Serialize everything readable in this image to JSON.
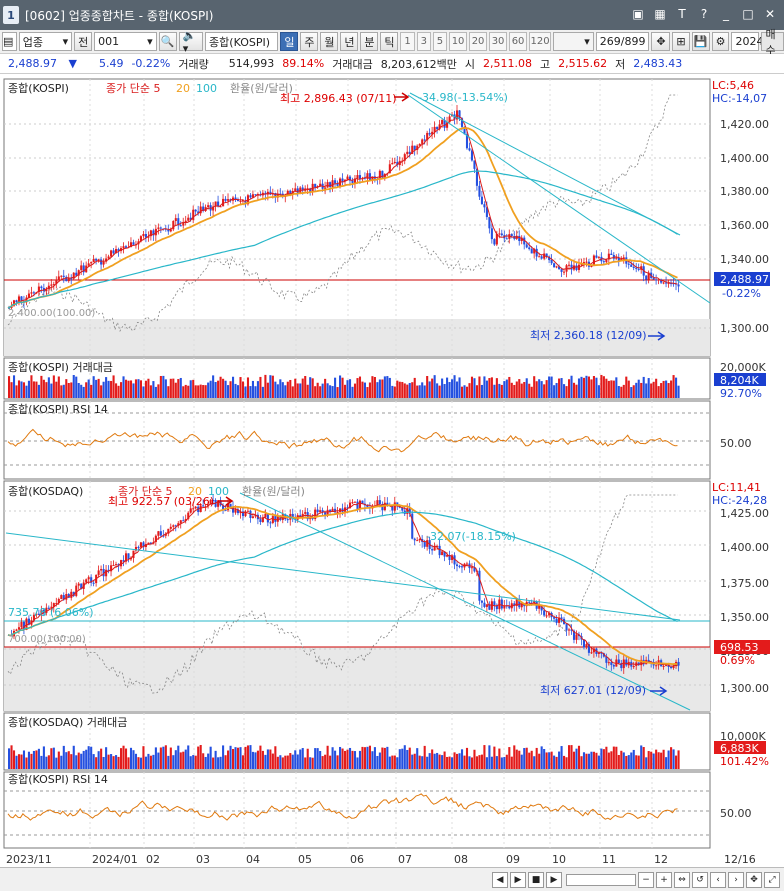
{
  "window": {
    "title": "[0602] 업종종합차트 - 종합(KOSPI)",
    "app_icon": "1"
  },
  "toolbar": {
    "market": "업종",
    "all_label": "전",
    "code": "001",
    "name": "종합(KOSPI)",
    "periods": [
      "일",
      "주",
      "월",
      "년",
      "분",
      "틱"
    ],
    "active_period": "일",
    "minute_values": [
      "1",
      "3",
      "5",
      "10",
      "20",
      "30",
      "60",
      "120"
    ],
    "count": "269/899",
    "year": "2024",
    "buy_label": "매수"
  },
  "quote": {
    "price": "2,488.97",
    "change": "5.49",
    "change_pct": "-0.22%",
    "volume_label": "거래량",
    "volume": "514,993",
    "volume_pct": "89.14%",
    "amount_label": "거래대금",
    "amount": "8,203,612백만",
    "open_label": "시",
    "open": "2,511.08",
    "high_label": "고",
    "high": "2,515.62",
    "low_label": "저",
    "low": "2,483.43"
  },
  "panels": {
    "kospi_price": {
      "legend": [
        "종합(KOSPI)",
        "종가 단순 5",
        "20",
        "100",
        "환율(원/달러)"
      ],
      "corner": [
        "LC:5,46",
        "HC:-14,07"
      ],
      "high_note": "최고 2,896.43 (07/11)",
      "low_note": "최저 2,360.18 (12/09)",
      "trend_note": "-34.98(-13.54%)",
      "base_note": "2,400.00(100.00)",
      "y_ticks": [
        "1,420.00",
        "1,400.00",
        "1,380.00",
        "1,360.00",
        "1,340.00",
        "1,300.00"
      ],
      "last_price": "2,488.97",
      "last_pct": "-0.22%"
    },
    "kospi_volume": {
      "legend": "종합(KOSPI) 거래대금",
      "scale": "20,000K",
      "last": "8,204K",
      "pct": "92.70%"
    },
    "kospi_rsi": {
      "legend": "종합(KOSPI) RSI 14",
      "tick": "50.00"
    },
    "kosdaq_price": {
      "legend": [
        "종합(KOSDAQ)",
        "종가 단순 5",
        "20",
        "100",
        "환율(원/달러)"
      ],
      "corner": [
        "LC:11,41",
        "HC:-24,28"
      ],
      "high_note": "최고 922.57 (03/26)",
      "low_note": "최저 627.01 (12/09)",
      "trend_note": "-32.07(-18.15%)",
      "left_note": "735.78 (6.06%)",
      "base_note": "700.00(100.00)",
      "y_ticks": [
        "1,425.00",
        "1,400.00",
        "1,375.00",
        "1,350.00",
        "1,325.00",
        "1,300.00"
      ],
      "last_price": "698.53",
      "last_pct": "0.69%"
    },
    "kosdaq_volume": {
      "legend": "종합(KOSDAQ) 거래대금",
      "scale": "10,000K",
      "last": "6,883K",
      "pct": "101.42%"
    },
    "kosdaq_rsi": {
      "legend": "종합(KOSPI) RSI 14",
      "tick": "50.00"
    }
  },
  "x_axis": [
    "2023/11",
    "2024/01",
    "02",
    "03",
    "04",
    "05",
    "06",
    "07",
    "08",
    "09",
    "10",
    "11",
    "12",
    "12/16"
  ],
  "colors": {
    "up": "#e31b1b",
    "down": "#2450e0",
    "ma5": "#d91c1c",
    "ma20": "#f0a020",
    "ma100": "#29b7c9",
    "fx": "#888888",
    "rsi": "#e07a10"
  }
}
